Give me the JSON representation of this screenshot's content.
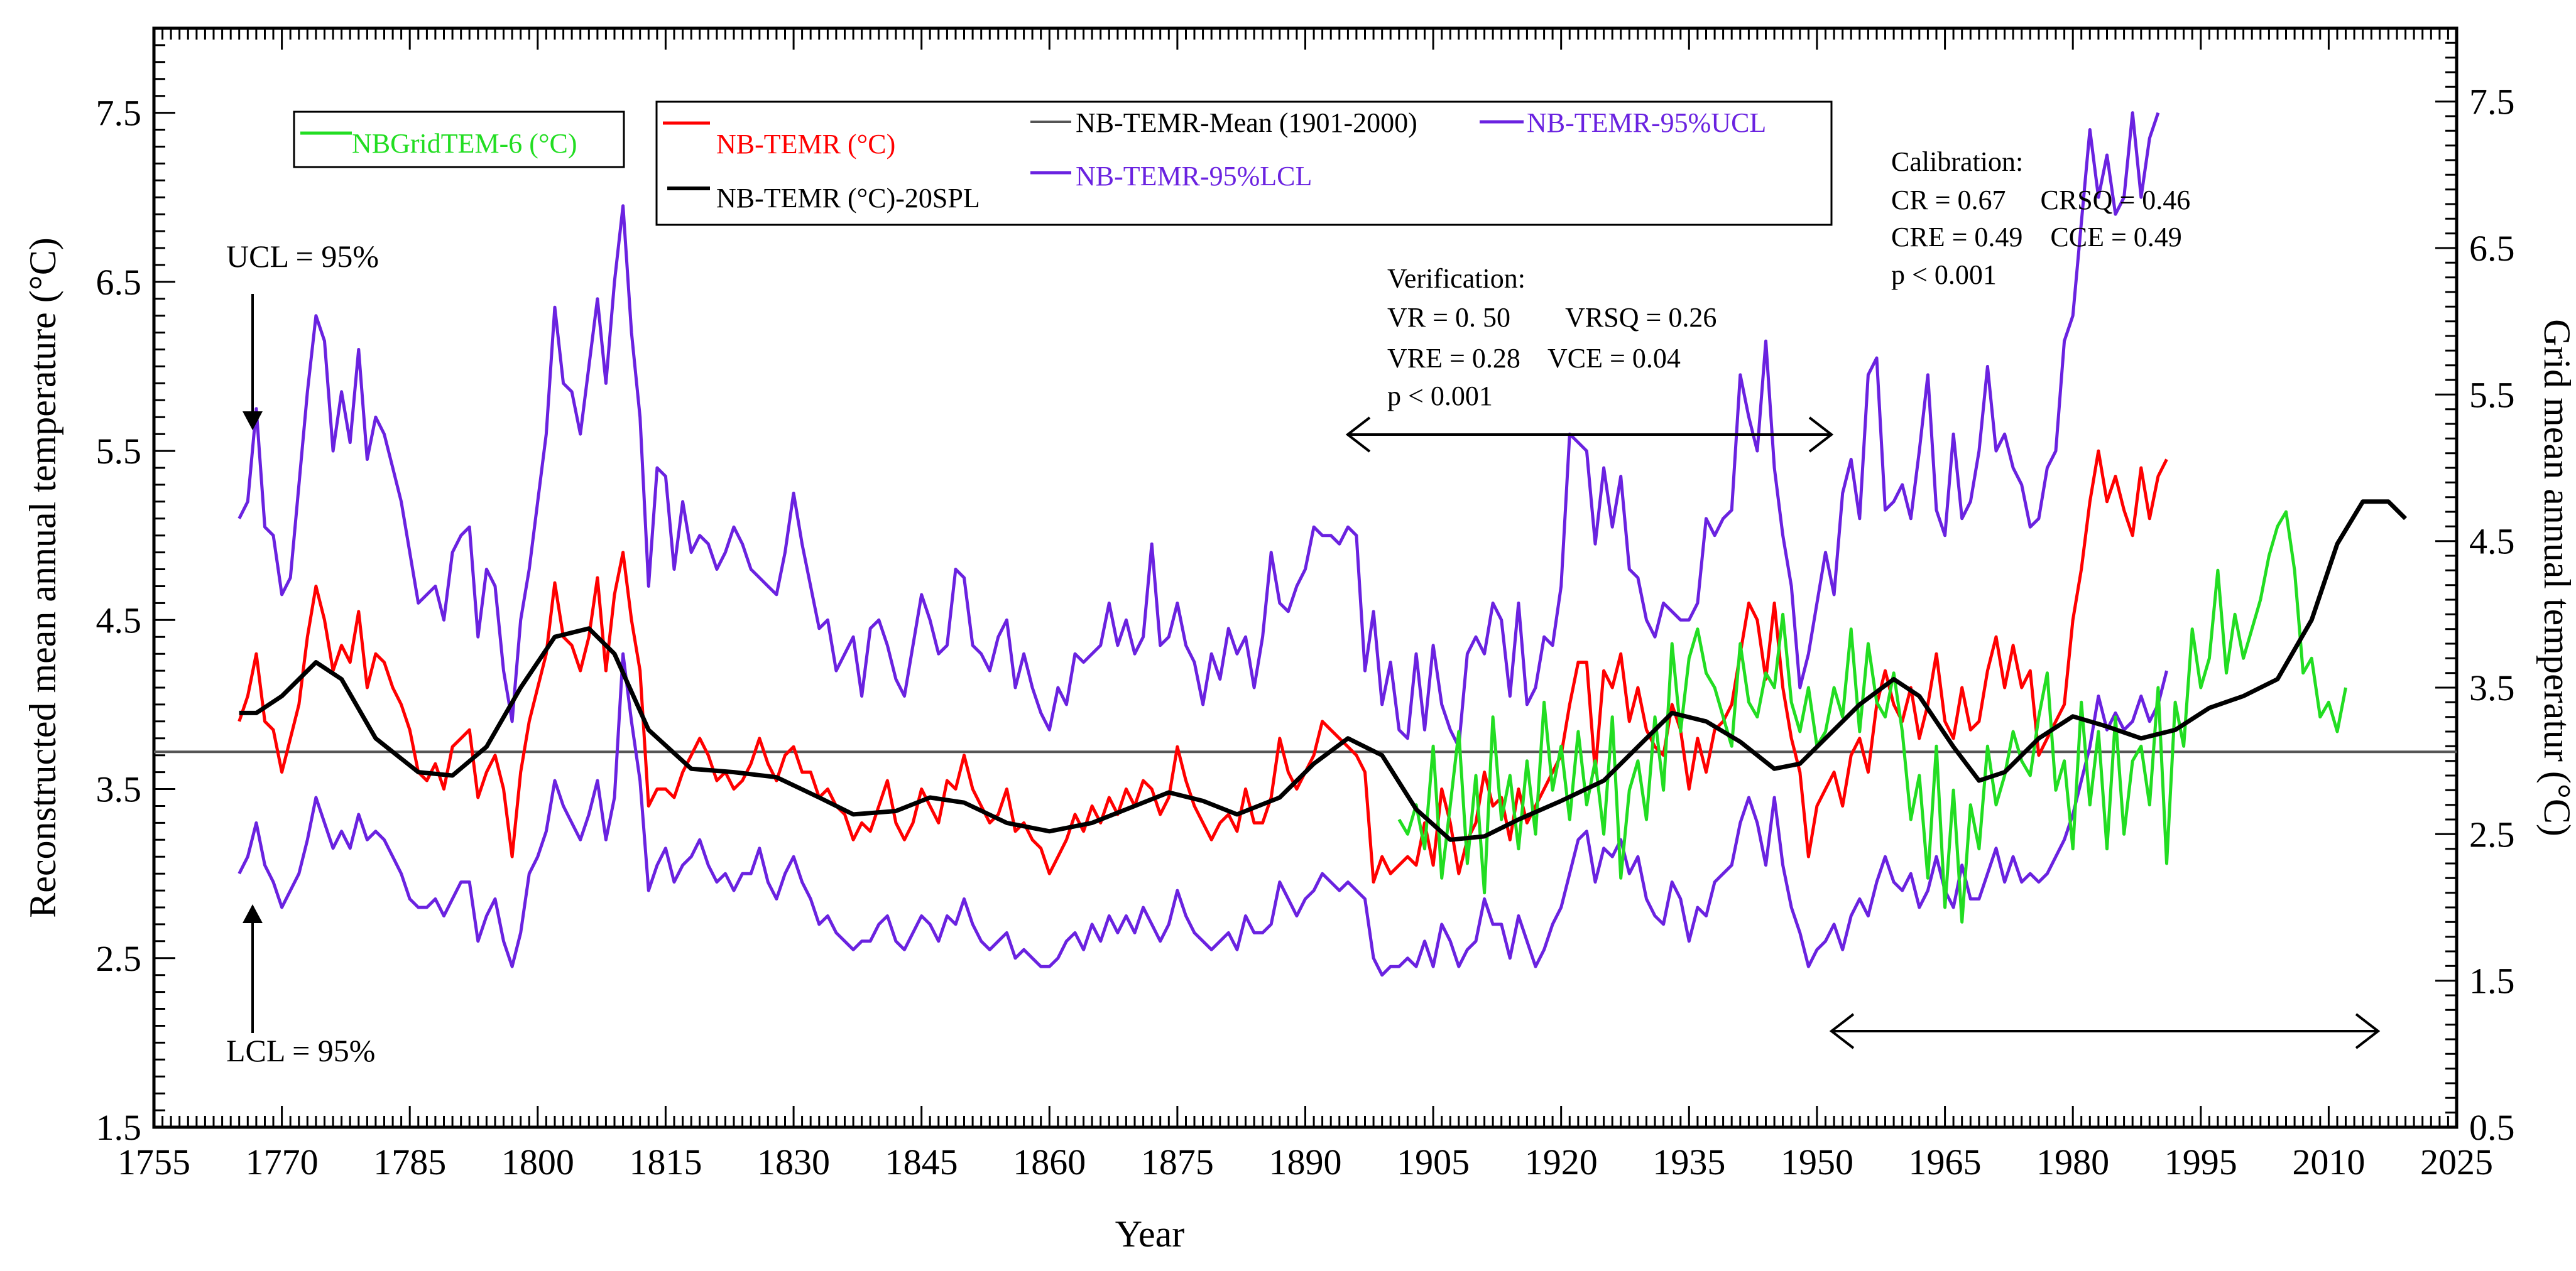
{
  "chart_data": {
    "type": "line",
    "title": "",
    "xlabel": "Year",
    "ylabel_left": "Reconstructed mean annual temperature (°C)",
    "ylabel_right": "Grid mean annual temperatur (°C)",
    "xlim": [
      1755,
      2025
    ],
    "ylim_left": [
      1.5,
      8.0
    ],
    "ylim_right": [
      0.5,
      8.0
    ],
    "x_ticks": [
      "1755",
      "1770",
      "1785",
      "1800",
      "1815",
      "1830",
      "1845",
      "1860",
      "1875",
      "1890",
      "1905",
      "1920",
      "1935",
      "1950",
      "1965",
      "1980",
      "1995",
      "2010",
      "2025"
    ],
    "y_ticks_left": [
      "1.5",
      "2.5",
      "3.5",
      "4.5",
      "5.5",
      "6.5",
      "7.5"
    ],
    "y_ticks_right": [
      "0.5",
      "1.5",
      "2.5",
      "3.5",
      "4.5",
      "5.5",
      "6.5",
      "7.5"
    ],
    "legend": {
      "grid_label": "NBGridTEM-6 (°C)",
      "temr_label": "NB-TEMR (°C)",
      "spl_label": "NB-TEMR (°C)-20SPL",
      "mean_label": "NB-TEMR-Mean (1901-2000)",
      "ucl_label": "NB-TEMR-95%UCL",
      "lcl_label": "NB-TEMR-95%LCL"
    },
    "annotations": {
      "ucl_text": "UCL = 95%",
      "lcl_text": "LCL = 95%",
      "verification_title": "Verification:",
      "verification_line1": "VR = 0. 50        VRSQ = 0.26",
      "verification_line2": "VRE = 0.28    VCE = 0.04",
      "verification_p": "p < 0.001",
      "calibration_title": "Calibration:",
      "calibration_line1": "CR = 0.67     CRSQ = 0.46",
      "calibration_line2": "CRE = 0.49    CCE = 0.49",
      "calibration_p": "p < 0.001"
    },
    "colors": {
      "temr": "#ff0000",
      "spl": "#000000",
      "mean": "#555555",
      "ci": "#6a22e0",
      "grid": "#22dd22"
    },
    "mean_value": 3.72,
    "series": [
      {
        "name": "NB-TEMR (°C)",
        "axis": "left",
        "start_year": 1765,
        "values": [
          3.9,
          4.05,
          4.3,
          3.9,
          3.85,
          3.6,
          3.8,
          4.0,
          4.4,
          4.7,
          4.5,
          4.2,
          4.35,
          4.25,
          4.55,
          4.1,
          4.3,
          4.25,
          4.1,
          4.0,
          3.85,
          3.6,
          3.55,
          3.65,
          3.5,
          3.75,
          3.8,
          3.85,
          3.45,
          3.6,
          3.7,
          3.5,
          3.1,
          3.6,
          3.9,
          4.1,
          4.3,
          4.72,
          4.4,
          4.35,
          4.2,
          4.4,
          4.75,
          4.2,
          4.65,
          4.9,
          4.5,
          4.2,
          3.4,
          3.5,
          3.5,
          3.45,
          3.6,
          3.7,
          3.8,
          3.7,
          3.55,
          3.6,
          3.5,
          3.55,
          3.65,
          3.8,
          3.65,
          3.55,
          3.7,
          3.75,
          3.6,
          3.6,
          3.45,
          3.5,
          3.4,
          3.35,
          3.2,
          3.3,
          3.25,
          3.4,
          3.55,
          3.3,
          3.2,
          3.3,
          3.5,
          3.4,
          3.3,
          3.55,
          3.5,
          3.7,
          3.5,
          3.4,
          3.3,
          3.35,
          3.5,
          3.25,
          3.3,
          3.2,
          3.15,
          3.0,
          3.1,
          3.2,
          3.35,
          3.25,
          3.4,
          3.3,
          3.45,
          3.35,
          3.5,
          3.4,
          3.55,
          3.5,
          3.35,
          3.45,
          3.75,
          3.55,
          3.4,
          3.3,
          3.2,
          3.3,
          3.35,
          3.25,
          3.5,
          3.3,
          3.3,
          3.45,
          3.8,
          3.6,
          3.5,
          3.6,
          3.7,
          3.9,
          3.85,
          3.8,
          3.75,
          3.7,
          3.6,
          2.95,
          3.1,
          3.0,
          3.05,
          3.1,
          3.05,
          3.3,
          3.05,
          3.5,
          3.3,
          3.0,
          3.2,
          3.3,
          3.6,
          3.4,
          3.45,
          3.2,
          3.5,
          3.3,
          3.4,
          3.5,
          3.6,
          3.7,
          4.0,
          4.25,
          4.25,
          3.6,
          4.2,
          4.1,
          4.3,
          3.9,
          4.1,
          3.85,
          3.75,
          3.7,
          4.0,
          3.85,
          3.5,
          3.8,
          3.6,
          3.85,
          3.9,
          4.0,
          4.3,
          4.6,
          4.5,
          4.15,
          4.6,
          4.1,
          3.8,
          3.6,
          3.1,
          3.4,
          3.5,
          3.6,
          3.4,
          3.7,
          3.8,
          3.6,
          4.0,
          4.2,
          4.0,
          3.9,
          4.1,
          3.8,
          4.0,
          4.3,
          3.9,
          3.8,
          4.1,
          3.85,
          3.9,
          4.2,
          4.4,
          4.1,
          4.35,
          4.1,
          4.2,
          3.7,
          3.8,
          3.9,
          4.0,
          4.5,
          4.8,
          5.2,
          5.5,
          5.2,
          5.35,
          5.15,
          5.0,
          5.4,
          5.1,
          5.35,
          5.45
        ]
      },
      {
        "name": "NB-TEMR (°C)-20SPL",
        "axis": "left",
        "points": [
          [
            1765,
            3.95
          ],
          [
            1767,
            3.95
          ],
          [
            1770,
            4.05
          ],
          [
            1774,
            4.25
          ],
          [
            1777,
            4.15
          ],
          [
            1781,
            3.8
          ],
          [
            1786,
            3.6
          ],
          [
            1790,
            3.58
          ],
          [
            1794,
            3.75
          ],
          [
            1798,
            4.1
          ],
          [
            1802,
            4.4
          ],
          [
            1806,
            4.45
          ],
          [
            1809,
            4.3
          ],
          [
            1813,
            3.85
          ],
          [
            1818,
            3.62
          ],
          [
            1823,
            3.6
          ],
          [
            1828,
            3.57
          ],
          [
            1833,
            3.45
          ],
          [
            1837,
            3.35
          ],
          [
            1842,
            3.37
          ],
          [
            1846,
            3.45
          ],
          [
            1850,
            3.42
          ],
          [
            1855,
            3.3
          ],
          [
            1860,
            3.25
          ],
          [
            1865,
            3.3
          ],
          [
            1870,
            3.4
          ],
          [
            1874,
            3.48
          ],
          [
            1878,
            3.43
          ],
          [
            1882,
            3.35
          ],
          [
            1887,
            3.45
          ],
          [
            1891,
            3.65
          ],
          [
            1895,
            3.8
          ],
          [
            1899,
            3.7
          ],
          [
            1903,
            3.38
          ],
          [
            1907,
            3.2
          ],
          [
            1911,
            3.22
          ],
          [
            1915,
            3.32
          ],
          [
            1920,
            3.43
          ],
          [
            1925,
            3.55
          ],
          [
            1929,
            3.75
          ],
          [
            1933,
            3.95
          ],
          [
            1937,
            3.9
          ],
          [
            1941,
            3.78
          ],
          [
            1945,
            3.62
          ],
          [
            1948,
            3.65
          ],
          [
            1951,
            3.8
          ],
          [
            1955,
            4.0
          ],
          [
            1959,
            4.15
          ],
          [
            1962,
            4.05
          ],
          [
            1966,
            3.75
          ],
          [
            1969,
            3.55
          ],
          [
            1972,
            3.6
          ],
          [
            1976,
            3.8
          ],
          [
            1980,
            3.93
          ],
          [
            1984,
            3.87
          ],
          [
            1988,
            3.8
          ],
          [
            1992,
            3.85
          ],
          [
            1996,
            3.98
          ],
          [
            2000,
            4.05
          ],
          [
            2004,
            4.15
          ],
          [
            2008,
            4.5
          ],
          [
            2011,
            4.95
          ],
          [
            2014,
            5.2
          ],
          [
            2017,
            5.2
          ],
          [
            2019,
            5.1
          ]
        ]
      },
      {
        "name": "NB-TEMR-95%UCL",
        "axis": "left",
        "start_year": 1765,
        "values": [
          5.1,
          5.2,
          5.75,
          5.05,
          5.0,
          4.65,
          4.75,
          5.3,
          5.85,
          6.3,
          6.15,
          5.5,
          5.85,
          5.55,
          6.1,
          5.45,
          5.7,
          5.6,
          5.4,
          5.2,
          4.9,
          4.6,
          4.65,
          4.7,
          4.5,
          4.9,
          5.0,
          5.05,
          4.4,
          4.8,
          4.7,
          4.2,
          3.9,
          4.5,
          4.8,
          5.2,
          5.6,
          6.35,
          5.9,
          5.85,
          5.6,
          6.0,
          6.4,
          5.9,
          6.5,
          6.95,
          6.2,
          5.7,
          4.7,
          5.4,
          5.35,
          4.8,
          5.2,
          4.9,
          5.0,
          4.95,
          4.8,
          4.9,
          5.05,
          4.95,
          4.8,
          4.75,
          4.7,
          4.65,
          4.9,
          5.25,
          4.95,
          4.7,
          4.45,
          4.5,
          4.2,
          4.3,
          4.4,
          4.05,
          4.45,
          4.5,
          4.35,
          4.15,
          4.05,
          4.35,
          4.65,
          4.5,
          4.3,
          4.35,
          4.8,
          4.75,
          4.35,
          4.3,
          4.2,
          4.4,
          4.5,
          4.1,
          4.3,
          4.1,
          3.95,
          3.85,
          4.1,
          4.0,
          4.3,
          4.25,
          4.3,
          4.35,
          4.6,
          4.35,
          4.5,
          4.3,
          4.4,
          4.95,
          4.35,
          4.4,
          4.6,
          4.35,
          4.25,
          4.0,
          4.3,
          4.15,
          4.45,
          4.3,
          4.4,
          4.1,
          4.4,
          4.9,
          4.6,
          4.55,
          4.7,
          4.8,
          5.05,
          5.0,
          5.0,
          4.95,
          5.05,
          5.0,
          4.2,
          4.55,
          4.0,
          4.25,
          3.85,
          3.8,
          4.3,
          3.85,
          4.35,
          4.0,
          3.85,
          3.75,
          4.3,
          4.4,
          4.3,
          4.6,
          4.5,
          4.05,
          4.6,
          4.0,
          4.1,
          4.4,
          4.35,
          4.7,
          5.6,
          5.55,
          5.5,
          4.95,
          5.4,
          5.05,
          5.35,
          4.8,
          4.75,
          4.5,
          4.4,
          4.6,
          4.55,
          4.5,
          4.5,
          4.6,
          5.1,
          5.0,
          5.1,
          5.15,
          5.95,
          5.7,
          5.5,
          6.15,
          5.4,
          5.0,
          4.7,
          4.1,
          4.3,
          4.6,
          4.9,
          4.65,
          5.25,
          5.45,
          5.1,
          5.95,
          6.05,
          5.15,
          5.2,
          5.3,
          5.1,
          5.5,
          5.95,
          5.15,
          5.0,
          5.6,
          5.1,
          5.2,
          5.5,
          6.0,
          5.5,
          5.6,
          5.4,
          5.3,
          5.05,
          5.1,
          5.4,
          5.5,
          6.15,
          6.3,
          6.85,
          7.4,
          7.0,
          7.25,
          6.9,
          7.0,
          7.5,
          7.0,
          7.35,
          7.5
        ]
      },
      {
        "name": "NB-TEMR-95%LCL",
        "axis": "left",
        "start_year": 1765,
        "values": [
          3.0,
          3.1,
          3.3,
          3.05,
          2.95,
          2.8,
          2.9,
          3.0,
          3.2,
          3.45,
          3.3,
          3.15,
          3.25,
          3.15,
          3.35,
          3.2,
          3.25,
          3.2,
          3.1,
          3.0,
          2.85,
          2.8,
          2.8,
          2.85,
          2.75,
          2.85,
          2.95,
          2.95,
          2.6,
          2.75,
          2.85,
          2.6,
          2.45,
          2.65,
          3.0,
          3.1,
          3.25,
          3.55,
          3.4,
          3.3,
          3.2,
          3.35,
          3.55,
          3.2,
          3.45,
          4.3,
          3.9,
          3.55,
          2.9,
          3.05,
          3.15,
          2.95,
          3.05,
          3.1,
          3.2,
          3.05,
          2.95,
          3.0,
          2.9,
          3.0,
          3.0,
          3.15,
          2.95,
          2.85,
          3.0,
          3.1,
          2.95,
          2.85,
          2.7,
          2.75,
          2.65,
          2.6,
          2.55,
          2.6,
          2.6,
          2.7,
          2.75,
          2.6,
          2.55,
          2.65,
          2.75,
          2.7,
          2.6,
          2.75,
          2.7,
          2.85,
          2.7,
          2.6,
          2.55,
          2.6,
          2.65,
          2.5,
          2.55,
          2.5,
          2.45,
          2.45,
          2.5,
          2.6,
          2.65,
          2.55,
          2.7,
          2.6,
          2.75,
          2.65,
          2.75,
          2.65,
          2.8,
          2.7,
          2.6,
          2.7,
          2.9,
          2.75,
          2.65,
          2.6,
          2.55,
          2.6,
          2.65,
          2.55,
          2.75,
          2.65,
          2.65,
          2.7,
          2.95,
          2.85,
          2.75,
          2.85,
          2.9,
          3.0,
          2.95,
          2.9,
          2.95,
          2.9,
          2.85,
          2.5,
          2.4,
          2.45,
          2.45,
          2.5,
          2.45,
          2.6,
          2.45,
          2.7,
          2.6,
          2.45,
          2.55,
          2.6,
          2.85,
          2.7,
          2.7,
          2.5,
          2.75,
          2.6,
          2.45,
          2.55,
          2.7,
          2.8,
          3.0,
          3.2,
          3.25,
          2.95,
          3.15,
          3.1,
          3.2,
          3.0,
          3.1,
          2.85,
          2.75,
          2.7,
          2.95,
          2.85,
          2.6,
          2.8,
          2.75,
          2.95,
          3.0,
          3.05,
          3.3,
          3.45,
          3.3,
          3.05,
          3.45,
          3.05,
          2.8,
          2.65,
          2.45,
          2.55,
          2.6,
          2.7,
          2.55,
          2.75,
          2.85,
          2.75,
          2.95,
          3.1,
          2.95,
          2.9,
          3.0,
          2.8,
          2.9,
          3.1,
          2.9,
          2.8,
          3.05,
          2.85,
          2.85,
          3.0,
          3.15,
          2.95,
          3.1,
          2.95,
          3.0,
          2.95,
          3.0,
          3.1,
          3.2,
          3.35,
          3.55,
          3.75,
          4.05,
          3.85,
          3.95,
          3.85,
          3.9,
          4.05,
          3.9,
          4.0,
          4.2
        ]
      },
      {
        "name": "NBGridTEM-6 (°C)",
        "axis": "right",
        "start_year": 1901,
        "values": [
          2.6,
          2.5,
          2.7,
          2.4,
          3.1,
          2.2,
          2.7,
          3.2,
          2.3,
          2.9,
          2.1,
          3.3,
          2.6,
          2.9,
          2.4,
          3.0,
          2.5,
          3.4,
          2.8,
          3.1,
          2.6,
          3.2,
          2.7,
          3.0,
          2.5,
          3.3,
          2.2,
          2.8,
          3.0,
          2.6,
          3.3,
          2.8,
          3.8,
          3.2,
          3.7,
          3.9,
          3.6,
          3.5,
          3.3,
          3.1,
          3.8,
          3.4,
          3.3,
          3.6,
          3.5,
          4.0,
          3.4,
          3.2,
          3.5,
          3.1,
          3.2,
          3.5,
          3.3,
          3.9,
          3.2,
          3.8,
          3.4,
          3.3,
          3.6,
          3.2,
          2.6,
          2.9,
          2.2,
          3.1,
          2.0,
          2.8,
          1.9,
          2.7,
          2.4,
          3.1,
          2.7,
          2.9,
          3.2,
          3.0,
          2.9,
          3.3,
          3.6,
          2.8,
          3.0,
          2.4,
          3.4,
          2.7,
          3.2,
          2.4,
          3.3,
          2.5,
          3.0,
          3.1,
          2.7,
          3.5,
          2.3,
          3.4,
          3.1,
          3.9,
          3.5,
          3.7,
          4.3,
          3.6,
          4.0,
          3.7,
          3.9,
          4.1,
          4.4,
          4.6,
          4.7,
          4.3,
          3.6,
          3.7,
          3.3,
          3.4,
          3.2,
          3.5
        ]
      }
    ]
  }
}
